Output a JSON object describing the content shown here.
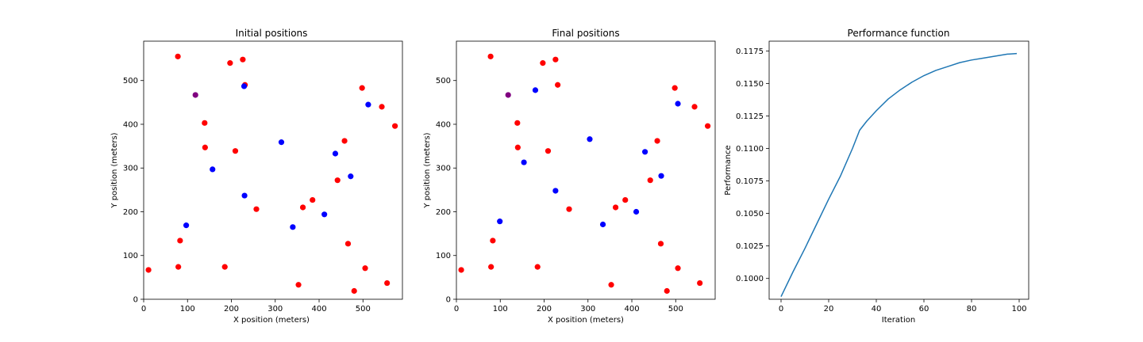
{
  "chart_data": [
    {
      "type": "scatter",
      "title": "Initial positions",
      "xlabel": "X position (meters)",
      "ylabel": "Y position (meters)",
      "xlim": [
        0,
        590
      ],
      "ylim": [
        0,
        590
      ],
      "xticks": [
        0,
        100,
        200,
        300,
        400,
        500
      ],
      "yticks": [
        0,
        100,
        200,
        300,
        400,
        500
      ],
      "grid": false,
      "series": [
        {
          "color": "#ff0000",
          "points": [
            [
              78,
              555
            ],
            [
              197,
              540
            ],
            [
              226,
              548
            ],
            [
              231,
              490
            ],
            [
              498,
              483
            ],
            [
              543,
              440
            ],
            [
              573,
              396
            ],
            [
              139,
              403
            ],
            [
              140,
              347
            ],
            [
              209,
              339
            ],
            [
              458,
              362
            ],
            [
              442,
              272
            ],
            [
              385,
              227
            ],
            [
              363,
              210
            ],
            [
              257,
              206
            ],
            [
              83,
              134
            ],
            [
              79,
              74
            ],
            [
              185,
              74
            ],
            [
              466,
              127
            ],
            [
              505,
              71
            ],
            [
              555,
              37
            ],
            [
              353,
              33
            ],
            [
              480,
              19
            ],
            [
              11,
              67
            ]
          ]
        },
        {
          "color": "#0000ff",
          "points": [
            [
              229,
              487
            ],
            [
              512,
              445
            ],
            [
              314,
              359
            ],
            [
              437,
              333
            ],
            [
              157,
              297
            ],
            [
              472,
              281
            ],
            [
              230,
              237
            ],
            [
              412,
              194
            ],
            [
              340,
              165
            ],
            [
              97,
              169
            ]
          ]
        },
        {
          "color": "#800080",
          "points": [
            [
              118,
              467
            ]
          ]
        }
      ]
    },
    {
      "type": "scatter",
      "title": "Final positions",
      "xlabel": "X position (meters)",
      "ylabel": "Y position (meters)",
      "xlim": [
        0,
        590
      ],
      "ylim": [
        0,
        590
      ],
      "xticks": [
        0,
        100,
        200,
        300,
        400,
        500
      ],
      "yticks": [
        0,
        100,
        200,
        300,
        400,
        500
      ],
      "grid": false,
      "series": [
        {
          "color": "#ff0000",
          "points": [
            [
              78,
              555
            ],
            [
              197,
              540
            ],
            [
              226,
              548
            ],
            [
              231,
              490
            ],
            [
              498,
              483
            ],
            [
              543,
              440
            ],
            [
              573,
              396
            ],
            [
              139,
              403
            ],
            [
              140,
              347
            ],
            [
              209,
              339
            ],
            [
              458,
              362
            ],
            [
              442,
              272
            ],
            [
              385,
              227
            ],
            [
              363,
              210
            ],
            [
              257,
              206
            ],
            [
              83,
              134
            ],
            [
              79,
              74
            ],
            [
              185,
              74
            ],
            [
              466,
              127
            ],
            [
              505,
              71
            ],
            [
              555,
              37
            ],
            [
              353,
              33
            ],
            [
              480,
              19
            ],
            [
              11,
              67
            ]
          ]
        },
        {
          "color": "#0000ff",
          "points": [
            [
              180,
              478
            ],
            [
              505,
              447
            ],
            [
              304,
              366
            ],
            [
              430,
              337
            ],
            [
              154,
              313
            ],
            [
              467,
              282
            ],
            [
              226,
              248
            ],
            [
              410,
              200
            ],
            [
              334,
              171
            ],
            [
              99,
              178
            ]
          ]
        },
        {
          "color": "#800080",
          "points": [
            [
              118,
              467
            ]
          ]
        }
      ]
    },
    {
      "type": "line",
      "title": "Performance function",
      "xlabel": "Iteration",
      "ylabel": "Performance",
      "xlim": [
        -5,
        104
      ],
      "ylim": [
        0.0984,
        0.11825
      ],
      "xticks": [
        0,
        20,
        40,
        60,
        80,
        100
      ],
      "yticks": [
        0.1,
        0.1025,
        0.105,
        0.1075,
        0.11,
        0.1125,
        0.115,
        0.1175
      ],
      "ytick_labels": [
        "0.1000",
        "0.1025",
        "0.1050",
        "0.1075",
        "0.1100",
        "0.1125",
        "0.1150",
        "0.1175"
      ],
      "grid": false,
      "series": [
        {
          "color": "#1f77b4",
          "x": [
            0,
            5,
            10,
            15,
            20,
            25,
            30,
            33,
            36,
            40,
            45,
            50,
            55,
            60,
            65,
            70,
            75,
            80,
            85,
            90,
            95,
            99
          ],
          "y": [
            0.0986,
            0.1005,
            0.1023,
            0.1042,
            0.1061,
            0.1079,
            0.11,
            0.1114,
            0.1121,
            0.1129,
            0.1138,
            0.1145,
            0.1151,
            0.1156,
            0.116,
            0.1163,
            0.1166,
            0.1168,
            0.11695,
            0.1171,
            0.11725,
            0.1173
          ]
        }
      ]
    }
  ]
}
